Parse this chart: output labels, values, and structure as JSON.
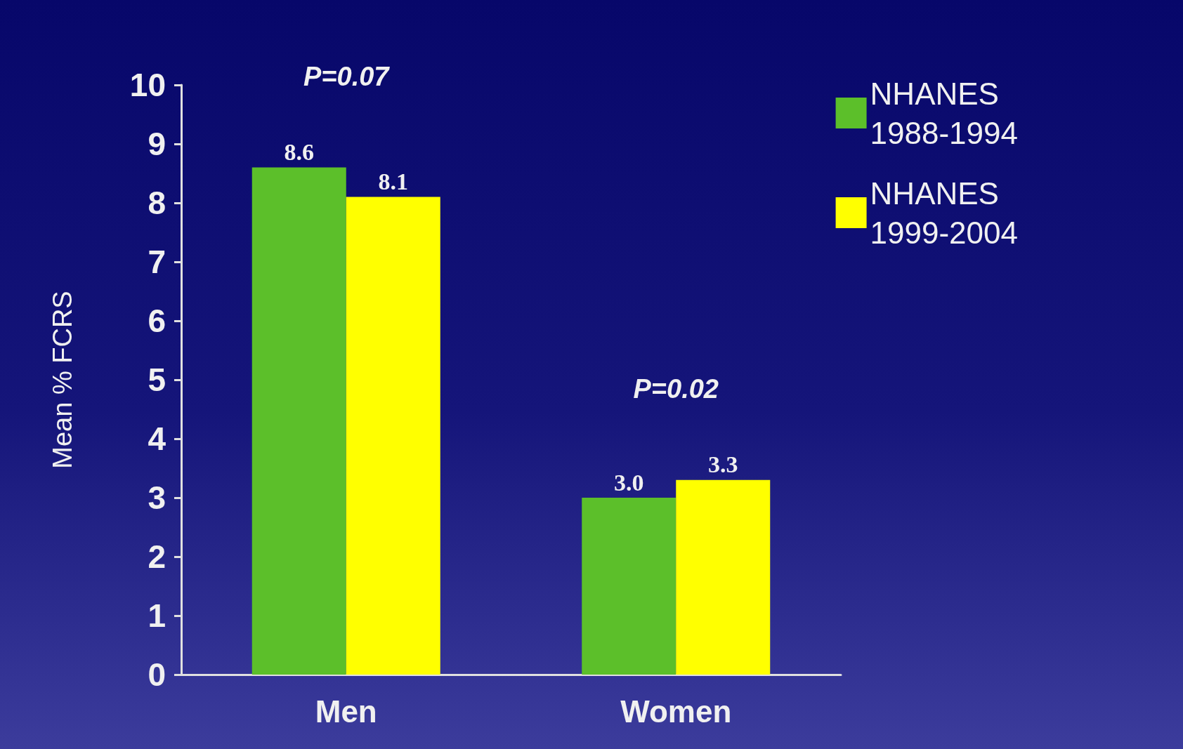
{
  "chart_data": {
    "type": "bar",
    "ylabel": "Mean % FCRS",
    "categories": [
      "Men",
      "Women"
    ],
    "series": [
      {
        "name": "NHANES 1988-1994",
        "color": "#5cbf2a",
        "values": [
          8.6,
          3.0
        ],
        "value_labels": [
          "8.6",
          "3.0"
        ]
      },
      {
        "name": "NHANES 1999-2004",
        "color": "#ffff00",
        "values": [
          8.1,
          3.3
        ],
        "value_labels": [
          "8.1",
          "3.3"
        ]
      }
    ],
    "ylim": [
      0,
      10
    ],
    "yticks": [
      0,
      1,
      2,
      3,
      4,
      5,
      6,
      7,
      8,
      9,
      10
    ],
    "grid": false,
    "legend": "top right",
    "annotations": [
      "P=0.07",
      "P=0.02"
    ]
  }
}
